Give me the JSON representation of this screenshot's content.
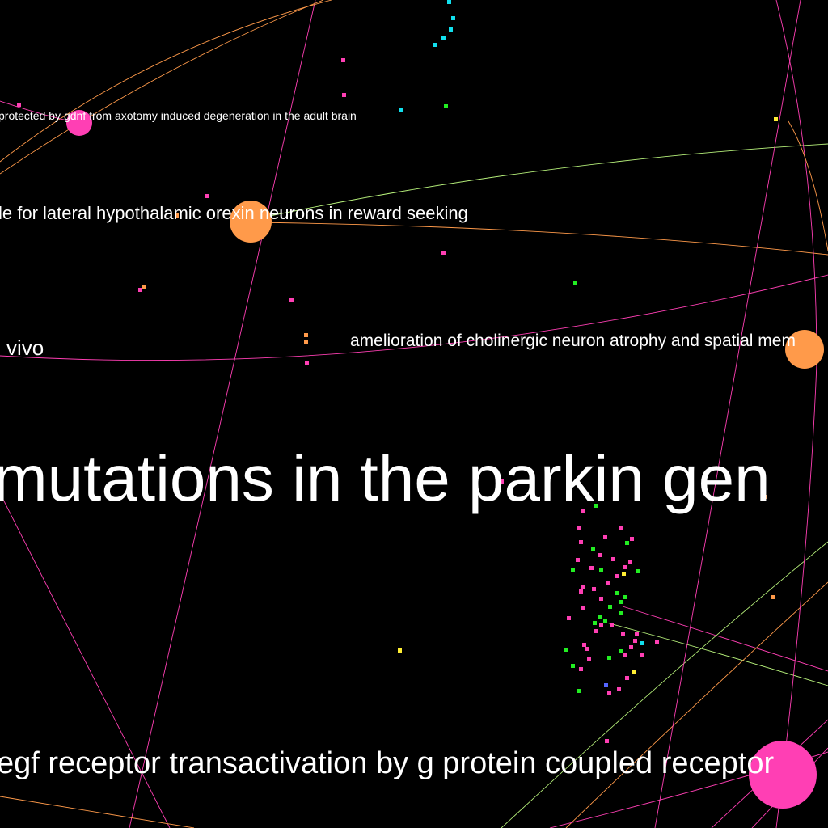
{
  "colors": {
    "background": "#000000",
    "label": "#ffffff",
    "pink": "#ff3fb4",
    "orange": "#ff9a4a",
    "green": "#22ee22",
    "cyan": "#11e0ee",
    "yellow": "#ffee33",
    "blue": "#5566ff",
    "lime_edge": "#b6f07a"
  },
  "labels": {
    "gdnf": "protected by gdnf from axotomy induced degeneration in the adult brain",
    "orexin": "le for lateral hypothalamic orexin neurons in reward seeking",
    "vivo": "vivo",
    "cholinergic": "amelioration of cholinergic neuron atrophy and spatial mem",
    "parkin": "mutations in the parkin gen",
    "egf": "egf receptor transactivation by g protein coupled receptor"
  }
}
